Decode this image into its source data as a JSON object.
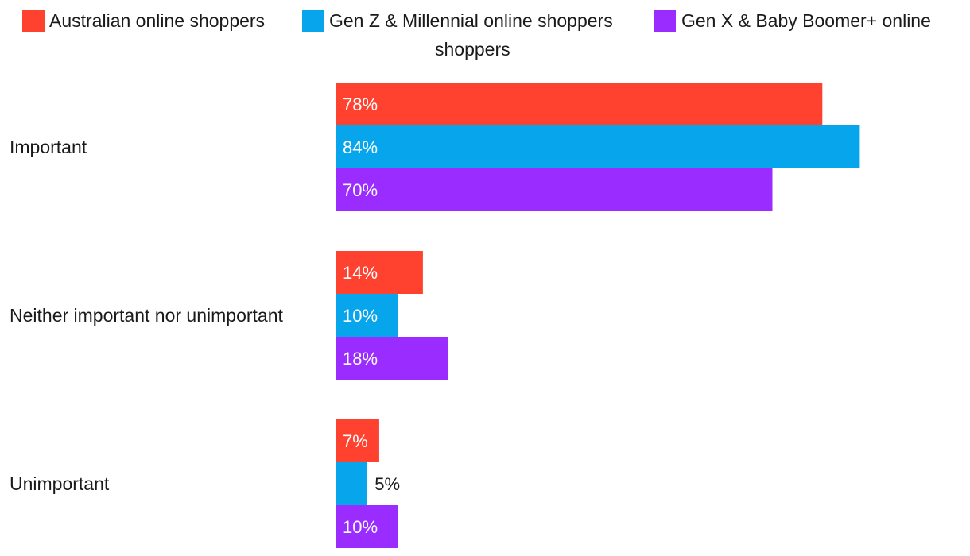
{
  "chart_data": {
    "type": "bar",
    "orientation": "horizontal",
    "categories": [
      "Important",
      "Neither important nor unimportant",
      "Unimportant"
    ],
    "series": [
      {
        "name": "Australian online shoppers",
        "color": "#ff4230",
        "values": [
          78,
          14,
          7
        ]
      },
      {
        "name": "Gen Z & Millennial online shoppers",
        "color": "#07a6ec",
        "values": [
          84,
          10,
          5
        ]
      },
      {
        "name": "Gen X & Baby Boomer+ online shoppers",
        "color": "#9b2cff",
        "values": [
          70,
          18,
          10
        ]
      }
    ],
    "value_suffix": "%",
    "xlim": [
      0,
      100
    ],
    "legend_position": "top",
    "grid": false
  },
  "legend": {
    "item_0": "Australian online shoppers",
    "item_1": "Gen Z & Millennial online shoppers",
    "item_2_line1": "Gen X & Baby Boomer+ online",
    "item_2_line2": "shoppers"
  }
}
